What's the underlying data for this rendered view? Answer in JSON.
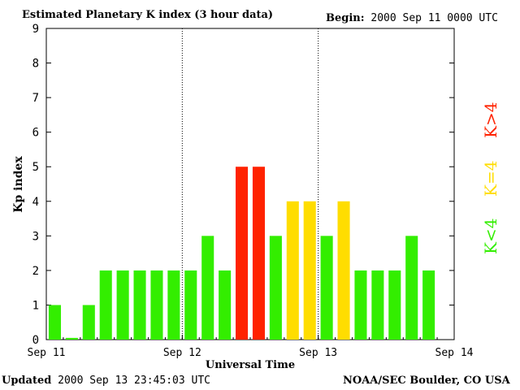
{
  "header": {
    "title": "Estimated Planetary K index (3 hour data)",
    "begin_label": "Begin:",
    "begin_value": "2000 Sep 11 0000 UTC"
  },
  "footer": {
    "updated_label": "Updated",
    "updated_value": "2000 Sep 13 23:45:03 UTC",
    "source": "NOAA/SEC Boulder, CO USA"
  },
  "legend": {
    "low": {
      "text": "K<4",
      "color": "#33ee00"
    },
    "mid": {
      "text": "K=4",
      "color": "#ffdd00"
    },
    "high": {
      "text": "K>4",
      "color": "#ff2200"
    }
  },
  "chart_data": {
    "type": "bar",
    "ylabel": "Kp index",
    "xlabel": "Universal Time",
    "ylim": [
      0,
      9
    ],
    "yticks": [
      "0",
      "1",
      "2",
      "3",
      "4",
      "5",
      "6",
      "7",
      "8",
      "9"
    ],
    "xticks": [
      "Sep 11",
      "Sep 12",
      "Sep 13",
      "Sep 14"
    ],
    "bars_per_day": 8,
    "values": [
      1,
      0.05,
      1,
      2,
      2,
      2,
      2,
      2,
      2,
      3,
      2,
      5,
      5,
      3,
      4,
      4,
      3,
      4,
      2,
      2,
      2,
      3,
      2
    ],
    "day_separators": "dotted",
    "colors": {
      "low": "#33ee00",
      "mid": "#ffdd00",
      "high": "#ff2200"
    }
  }
}
